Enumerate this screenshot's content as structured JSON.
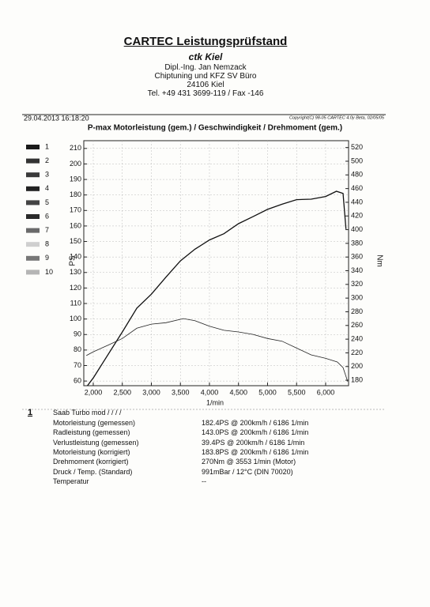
{
  "header": {
    "title": "CARTEC Leistungsprüfstand",
    "subtitle": "ctk Kiel",
    "lines": [
      "Dipl.-Ing. Jan Nemzack",
      "Chiptuning und KFZ SV Büro",
      "24106 Kiel",
      "Tel. +49 431 3699-119 / Fax -146"
    ]
  },
  "meta": {
    "date": "29.04.2013 16:18:20",
    "copyright": "Copyright(C) 98-05 CARTEC 4.0y Beta, 02/05/05"
  },
  "legend": {
    "labels": [
      "1",
      "2",
      "3",
      "4",
      "5",
      "6",
      "7",
      "8",
      "9",
      "10"
    ],
    "colors": [
      "#1a1a1a",
      "#333333",
      "#3a3a3a",
      "#222222",
      "#444444",
      "#2a2a2a",
      "#6a6a6a",
      "#cfcfcf",
      "#777777",
      "#b5b5b5"
    ]
  },
  "chart_data": {
    "type": "line",
    "title": "P-max Motorleistung (gem.) / Geschwindigkeit / Drehmoment (gem.)",
    "xlabel": "1/min",
    "ylabel": "PS",
    "y2label": "Nm",
    "grid": true,
    "xlim": [
      1837,
      6395
    ],
    "xticks": [
      {
        "value": 2000,
        "label": "2,000"
      },
      {
        "value": 2500,
        "label": "2,500"
      },
      {
        "value": 3000,
        "label": "3,000"
      },
      {
        "value": 3500,
        "label": "3,500"
      },
      {
        "value": 4000,
        "label": "4,000"
      },
      {
        "value": 4500,
        "label": "4,500"
      },
      {
        "value": 5000,
        "label": "5,000"
      },
      {
        "value": 5500,
        "label": "5,500"
      },
      {
        "value": 6000,
        "label": "6,000"
      }
    ],
    "ylim": [
      57,
      215
    ],
    "yticks": [
      60,
      70,
      80,
      90,
      100,
      110,
      120,
      130,
      140,
      150,
      160,
      170,
      180,
      190,
      200,
      210
    ],
    "y2lim": [
      172,
      530
    ],
    "y2ticks": [
      180,
      200,
      220,
      240,
      260,
      280,
      300,
      320,
      340,
      360,
      380,
      400,
      420,
      440,
      460,
      480,
      500,
      520
    ],
    "series": [
      {
        "color": "#111111",
        "axis": "y",
        "x": [
          1900,
          2000,
          2500,
          2750,
          3000,
          3250,
          3500,
          3750,
          4000,
          4250,
          4500,
          4750,
          5000,
          5250,
          5500,
          5750,
          6000,
          6186,
          6300,
          6350
        ],
        "values": [
          57,
          62,
          91.6,
          107,
          116,
          127,
          137.5,
          145,
          151,
          155,
          161.5,
          166,
          170.7,
          174,
          177,
          177.3,
          179,
          182.4,
          181,
          158
        ]
      },
      {
        "color": "#222222",
        "axis": "y2",
        "x": [
          1880,
          2000,
          2250,
          2500,
          2750,
          3000,
          3250,
          3553,
          3750,
          4000,
          4250,
          4500,
          4750,
          5000,
          5250,
          5500,
          5750,
          6000,
          6200,
          6300,
          6380
        ],
        "values": [
          216,
          221.6,
          231,
          241,
          256,
          262,
          264,
          270,
          267,
          259,
          253,
          250.5,
          247,
          241,
          237,
          227,
          217,
          212,
          206.6,
          198.5,
          178
        ]
      }
    ]
  },
  "results": {
    "index": "1",
    "vehicle": "Saab Turbo mod / / / /",
    "rows": [
      [
        "Motorleistung (gemessen)",
        "182.4PS @ 200km/h / 6186 1/min"
      ],
      [
        "Radleistung (gemessen)",
        "143.0PS @ 200km/h / 6186 1/min"
      ],
      [
        "Verlustleistung (gemessen)",
        "39.4PS @ 200km/h / 6186 1/min"
      ],
      [
        "Motorleistung (korrigiert)",
        "183.8PS @ 200km/h / 6186 1/min"
      ],
      [
        "Drehmoment (korrigiert)",
        "270Nm @ 3553 1/min (Motor)"
      ],
      [
        "Druck / Temp. (Standard)",
        "991mBar / 12°C  (DIN 70020)"
      ],
      [
        "Temperatur",
        "--"
      ]
    ]
  }
}
